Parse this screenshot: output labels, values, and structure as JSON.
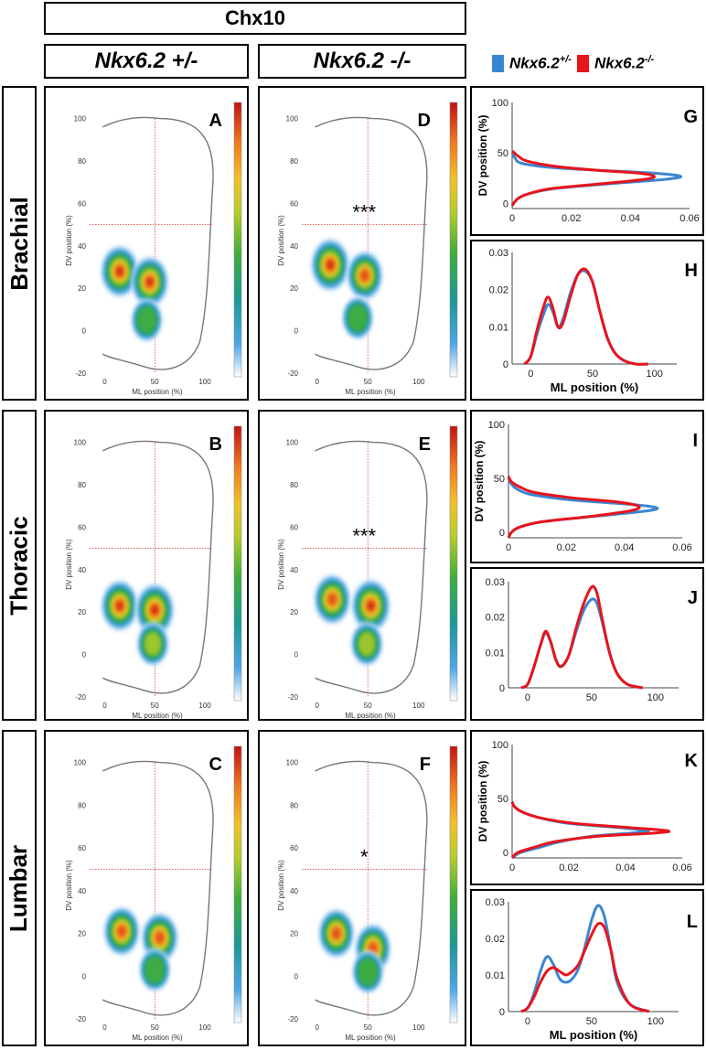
{
  "header": {
    "marker": "Chx10",
    "col_het": "Nkx6.2 +/-",
    "col_ko": "Nkx6.2 -/-"
  },
  "legend": {
    "het_label": "Nkx6.2",
    "het_sup": "+/-",
    "ko_label": "Nkx6.2",
    "ko_sup": "-/-",
    "het_color": "#3a86d0",
    "ko_color": "#e8141c"
  },
  "rows": [
    {
      "label": "Brachial"
    },
    {
      "label": "Thoracic"
    },
    {
      "label": "Lumbar"
    }
  ],
  "density_axes": {
    "xlabel": "ML position (%)",
    "ylabel": "DV position (%)",
    "xticks": [
      "0",
      "50",
      "100"
    ],
    "yticks": [
      "-20",
      "0",
      "20",
      "40",
      "60",
      "80",
      "100"
    ]
  },
  "chart_data": [
    {
      "panel": "A",
      "type": "heatmap",
      "row": "Brachial",
      "genotype": "Nkx6.2 +/-",
      "significance": "",
      "xlim": [
        -15,
        120
      ],
      "ylim": [
        -20,
        105
      ],
      "reference_lines": {
        "x": 50,
        "y": 50
      },
      "blobs": [
        {
          "x": 15,
          "y": 28,
          "peak": 0.95
        },
        {
          "x": 45,
          "y": 23,
          "peak": 0.9
        },
        {
          "x": 42,
          "y": 5,
          "peak": 0.45
        }
      ]
    },
    {
      "panel": "B",
      "type": "heatmap",
      "row": "Thoracic",
      "genotype": "Nkx6.2 +/-",
      "significance": "",
      "xlim": [
        -15,
        120
      ],
      "ylim": [
        -20,
        105
      ],
      "reference_lines": {
        "x": 50,
        "y": 50
      },
      "blobs": [
        {
          "x": 15,
          "y": 23,
          "peak": 0.9
        },
        {
          "x": 50,
          "y": 21,
          "peak": 1.0
        },
        {
          "x": 48,
          "y": 5,
          "peak": 0.5
        }
      ]
    },
    {
      "panel": "C",
      "type": "heatmap",
      "row": "Lumbar",
      "genotype": "Nkx6.2 +/-",
      "significance": "",
      "xlim": [
        -15,
        120
      ],
      "ylim": [
        -20,
        105
      ],
      "reference_lines": {
        "x": 50,
        "y": 50
      },
      "blobs": [
        {
          "x": 17,
          "y": 21,
          "peak": 0.8
        },
        {
          "x": 55,
          "y": 18,
          "peak": 0.85
        },
        {
          "x": 50,
          "y": 3,
          "peak": 0.45
        }
      ]
    },
    {
      "panel": "D",
      "type": "heatmap",
      "row": "Brachial",
      "genotype": "Nkx6.2 -/-",
      "significance": "***",
      "xlim": [
        -15,
        120
      ],
      "ylim": [
        -20,
        105
      ],
      "reference_lines": {
        "x": 50,
        "y": 50
      },
      "blobs": [
        {
          "x": 13,
          "y": 31,
          "peak": 1.0
        },
        {
          "x": 47,
          "y": 26,
          "peak": 0.8
        },
        {
          "x": 40,
          "y": 6,
          "peak": 0.45
        }
      ]
    },
    {
      "panel": "E",
      "type": "heatmap",
      "row": "Thoracic",
      "genotype": "Nkx6.2 -/-",
      "significance": "***",
      "xlim": [
        -15,
        120
      ],
      "ylim": [
        -20,
        105
      ],
      "reference_lines": {
        "x": 50,
        "y": 50
      },
      "blobs": [
        {
          "x": 15,
          "y": 26,
          "peak": 0.85
        },
        {
          "x": 53,
          "y": 23,
          "peak": 1.0
        },
        {
          "x": 49,
          "y": 5,
          "peak": 0.5
        }
      ]
    },
    {
      "panel": "F",
      "type": "heatmap",
      "row": "Lumbar",
      "genotype": "Nkx6.2 -/-",
      "significance": "*",
      "xlim": [
        -15,
        120
      ],
      "ylim": [
        -20,
        105
      ],
      "reference_lines": {
        "x": 50,
        "y": 50
      },
      "blobs": [
        {
          "x": 19,
          "y": 20,
          "peak": 0.8
        },
        {
          "x": 55,
          "y": 13,
          "peak": 0.8
        },
        {
          "x": 50,
          "y": 2,
          "peak": 0.45
        }
      ]
    },
    {
      "panel": "G",
      "type": "line",
      "row": "Brachial",
      "orientation": "vertical",
      "xlabel": "",
      "ylabel": "DV position (%)",
      "xlim": [
        0,
        0.06
      ],
      "ylim": [
        -5,
        100
      ],
      "xticks": [
        "0",
        "0.02",
        "0.04",
        "0.06"
      ],
      "yticks": [
        "0",
        "50",
        "100"
      ],
      "series": [
        {
          "name": "Nkx6.2+/-",
          "y": [
            -2,
            5,
            10,
            15,
            20,
            24,
            27,
            30,
            33,
            36,
            40,
            45,
            50
          ],
          "values": [
            0,
            0.002,
            0.006,
            0.015,
            0.035,
            0.052,
            0.057,
            0.048,
            0.028,
            0.012,
            0.003,
            0.001,
            0
          ]
        },
        {
          "name": "Nkx6.2-/-",
          "y": [
            -2,
            5,
            10,
            15,
            20,
            24,
            27,
            30,
            33,
            37,
            42,
            47,
            52
          ],
          "values": [
            0,
            0.002,
            0.006,
            0.014,
            0.032,
            0.045,
            0.048,
            0.043,
            0.028,
            0.014,
            0.005,
            0.002,
            0
          ]
        }
      ]
    },
    {
      "panel": "H",
      "type": "line",
      "row": "Brachial",
      "xlabel": "ML position (%)",
      "ylabel": "",
      "xlim": [
        -15,
        118
      ],
      "ylim": [
        0,
        0.03
      ],
      "xticks": [
        "0",
        "50",
        "100"
      ],
      "yticks": [
        "0",
        "0.01",
        "0.02",
        "0.03"
      ],
      "series": [
        {
          "name": "Nkx6.2+/-",
          "x": [
            -5,
            0,
            5,
            10,
            14,
            18,
            22,
            26,
            32,
            38,
            44,
            50,
            56,
            62,
            68,
            75,
            85,
            95
          ],
          "values": [
            0,
            0.002,
            0.008,
            0.013,
            0.016,
            0.014,
            0.01,
            0.012,
            0.019,
            0.024,
            0.025,
            0.022,
            0.014,
            0.007,
            0.003,
            0.001,
            0,
            0
          ]
        },
        {
          "name": "Nkx6.2-/-",
          "x": [
            -5,
            0,
            5,
            10,
            14,
            18,
            22,
            26,
            32,
            38,
            44,
            50,
            56,
            62,
            68,
            75,
            85,
            95
          ],
          "values": [
            0,
            0.002,
            0.009,
            0.015,
            0.018,
            0.015,
            0.01,
            0.011,
            0.018,
            0.024,
            0.0255,
            0.022,
            0.014,
            0.007,
            0.003,
            0.001,
            0,
            0
          ]
        }
      ]
    },
    {
      "panel": "I",
      "type": "line",
      "row": "Thoracic",
      "orientation": "vertical",
      "xlabel": "",
      "ylabel": "DV position (%)",
      "xlim": [
        0,
        0.06
      ],
      "ylim": [
        -5,
        100
      ],
      "xticks": [
        "0",
        "0.02",
        "0.04",
        "0.06"
      ],
      "yticks": [
        "0",
        "50",
        "100"
      ],
      "series": [
        {
          "name": "Nkx6.2+/-",
          "y": [
            -5,
            0,
            5,
            10,
            15,
            20,
            23,
            26,
            30,
            35,
            40,
            45,
            50
          ],
          "values": [
            0,
            0.001,
            0.004,
            0.012,
            0.03,
            0.048,
            0.051,
            0.042,
            0.022,
            0.008,
            0.003,
            0.001,
            0
          ]
        },
        {
          "name": "Nkx6.2-/-",
          "y": [
            -5,
            0,
            5,
            10,
            15,
            20,
            24,
            28,
            32,
            37,
            42,
            47,
            52
          ],
          "values": [
            0,
            0.001,
            0.004,
            0.012,
            0.029,
            0.042,
            0.045,
            0.038,
            0.022,
            0.009,
            0.004,
            0.001,
            0
          ]
        }
      ]
    },
    {
      "panel": "J",
      "type": "line",
      "row": "Thoracic",
      "xlabel": "",
      "ylabel": "",
      "xlim": [
        -15,
        118
      ],
      "ylim": [
        0,
        0.03
      ],
      "xticks": [
        "0",
        "50",
        "100"
      ],
      "yticks": [
        "0",
        "0.01",
        "0.02",
        "0.03"
      ],
      "series": [
        {
          "name": "Nkx6.2+/-",
          "x": [
            -5,
            0,
            5,
            10,
            14,
            18,
            22,
            26,
            32,
            38,
            44,
            50,
            54,
            58,
            64,
            70,
            78,
            90
          ],
          "values": [
            0,
            0.001,
            0.006,
            0.012,
            0.0155,
            0.013,
            0.008,
            0.006,
            0.009,
            0.016,
            0.022,
            0.025,
            0.024,
            0.019,
            0.01,
            0.004,
            0.001,
            0
          ]
        },
        {
          "name": "Nkx6.2-/-",
          "x": [
            -5,
            0,
            5,
            10,
            14,
            18,
            22,
            26,
            32,
            38,
            44,
            50,
            54,
            58,
            64,
            70,
            78,
            90
          ],
          "values": [
            0,
            0.001,
            0.006,
            0.012,
            0.016,
            0.013,
            0.008,
            0.006,
            0.009,
            0.017,
            0.024,
            0.0285,
            0.027,
            0.02,
            0.01,
            0.004,
            0.001,
            0
          ]
        }
      ]
    },
    {
      "panel": "K",
      "type": "line",
      "row": "Lumbar",
      "orientation": "vertical",
      "xlabel": "",
      "ylabel": "DV position (%)",
      "xlim": [
        0,
        0.06
      ],
      "ylim": [
        -5,
        100
      ],
      "xticks": [
        "0",
        "0.02",
        "0.04",
        "0.06"
      ],
      "yticks": [
        "0",
        "50",
        "100"
      ],
      "series": [
        {
          "name": "Nkx6.2+/-",
          "y": [
            -5,
            0,
            5,
            10,
            15,
            18,
            20,
            23,
            27,
            32,
            37,
            42,
            47
          ],
          "values": [
            0,
            0.003,
            0.01,
            0.017,
            0.028,
            0.042,
            0.048,
            0.038,
            0.02,
            0.01,
            0.004,
            0.001,
            0
          ]
        },
        {
          "name": "Nkx6.2-/-",
          "y": [
            -5,
            0,
            5,
            10,
            15,
            18,
            20,
            23,
            27,
            32,
            37,
            42,
            47
          ],
          "values": [
            0,
            0.002,
            0.008,
            0.015,
            0.03,
            0.05,
            0.055,
            0.042,
            0.022,
            0.01,
            0.004,
            0.001,
            0
          ]
        }
      ]
    },
    {
      "panel": "L",
      "type": "line",
      "row": "Lumbar",
      "xlabel": "ML position (%)",
      "ylabel": "",
      "xlim": [
        -15,
        118
      ],
      "ylim": [
        0,
        0.03
      ],
      "xticks": [
        "0",
        "50",
        "100"
      ],
      "yticks": [
        "0",
        "0.01",
        "0.02",
        "0.03"
      ],
      "series": [
        {
          "name": "Nkx6.2+/-",
          "x": [
            -5,
            0,
            5,
            10,
            15,
            20,
            25,
            30,
            35,
            40,
            45,
            50,
            55,
            60,
            65,
            70,
            80,
            95
          ],
          "values": [
            0,
            0.001,
            0.005,
            0.011,
            0.015,
            0.013,
            0.009,
            0.008,
            0.009,
            0.012,
            0.018,
            0.025,
            0.029,
            0.026,
            0.017,
            0.008,
            0.002,
            0
          ]
        },
        {
          "name": "Nkx6.2-/-",
          "x": [
            -5,
            0,
            5,
            10,
            15,
            20,
            25,
            30,
            35,
            40,
            45,
            50,
            55,
            60,
            65,
            70,
            80,
            95
          ],
          "values": [
            0,
            0.001,
            0.004,
            0.008,
            0.011,
            0.012,
            0.011,
            0.01,
            0.011,
            0.013,
            0.017,
            0.021,
            0.024,
            0.023,
            0.017,
            0.009,
            0.002,
            0
          ]
        }
      ]
    }
  ]
}
